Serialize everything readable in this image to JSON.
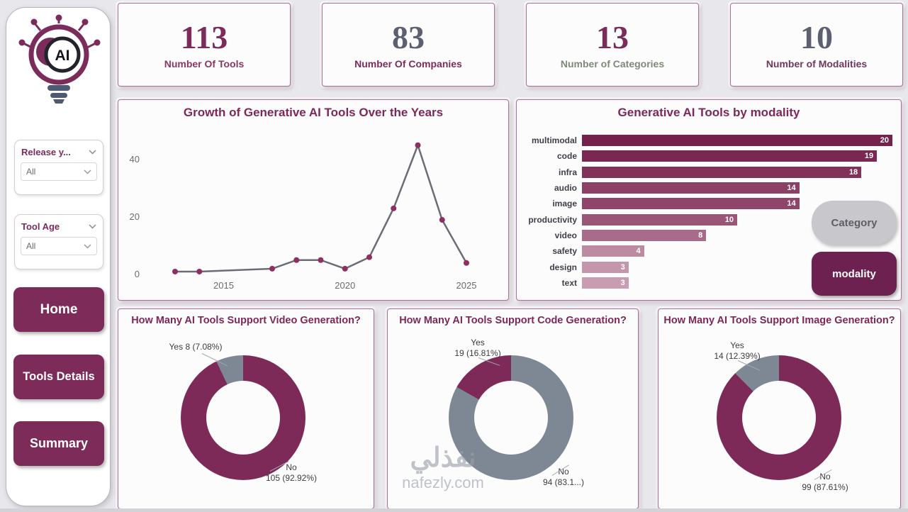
{
  "sidebar": {
    "logo_text": "AI",
    "filters": [
      {
        "label": "Release y...",
        "value": "All"
      },
      {
        "label": "Tool Age",
        "value": "All"
      }
    ],
    "nav": [
      {
        "label": "Home"
      },
      {
        "label": "Tools Details"
      },
      {
        "label": "Summary"
      }
    ]
  },
  "kpis": [
    {
      "value": "113",
      "label": "Number Of Tools",
      "value_color": "#7b2c5b",
      "label_color": "#8b3763"
    },
    {
      "value": "83",
      "label": "Number Of Companies",
      "value_color": "#5c6070",
      "label_color": "#7b2c5b"
    },
    {
      "value": "13",
      "label": "Number of Categories",
      "value_color": "#7b2c5b",
      "label_color": "#7e8a77"
    },
    {
      "value": "10",
      "label": "Number of Modalities",
      "value_color": "#5c6070",
      "label_color": "#6d3a5e"
    }
  ],
  "buttons": {
    "category_label": "Category",
    "modality_label": "modality"
  },
  "chart_data": [
    {
      "type": "line",
      "title": "Growth of Generative AI Tools Over the Years",
      "x": [
        2013,
        2014,
        2017,
        2018,
        2019,
        2020,
        2021,
        2022,
        2023,
        2024,
        2025
      ],
      "values": [
        1,
        1,
        2,
        5,
        5,
        2,
        6,
        23,
        45,
        19,
        4
      ],
      "x_ticks": [
        "2015",
        "2020",
        "2025"
      ],
      "x_tick_years": [
        2015,
        2020,
        2025
      ],
      "y_ticks": [
        0,
        20,
        40
      ],
      "ylim": [
        0,
        48
      ],
      "xlim": [
        2013,
        2025
      ],
      "grid": false,
      "legend": "none",
      "line_color": "#6b6c74",
      "point_color": "#8e2e62"
    },
    {
      "type": "bar",
      "title": "Generative AI Tools by modality",
      "orientation": "horizontal",
      "categories": [
        "multimodal",
        "code",
        "infra",
        "audio",
        "image",
        "productivity",
        "video",
        "safety",
        "design",
        "text"
      ],
      "values": [
        20,
        19,
        18,
        14,
        14,
        10,
        8,
        4,
        3,
        3
      ],
      "colors": [
        "#74214c",
        "#7a2852",
        "#823158",
        "#8d4066",
        "#90446a",
        "#9b5577",
        "#a96b8a",
        "#bc8ba2",
        "#c495ab",
        "#c99db1"
      ],
      "xlim": [
        0,
        20
      ],
      "xlabel": "",
      "ylabel": ""
    },
    {
      "type": "donut",
      "title": "How Many AI Tools Support Video Generation?",
      "segments": [
        {
          "label": "No",
          "value": 105,
          "pct": 92.92,
          "color": "#7d2a58"
        },
        {
          "label": "Yes",
          "value": 8,
          "pct": 7.08,
          "color": "#7e8794"
        }
      ],
      "yes_label_lines": [
        "Yes 8 (7.08%)"
      ],
      "no_label_lines": [
        "No",
        "105 (92.92%)"
      ]
    },
    {
      "type": "donut",
      "title": "How Many AI Tools Support Code Generation?",
      "segments": [
        {
          "label": "No",
          "value": 94,
          "pct": 83.19,
          "color": "#7e8794"
        },
        {
          "label": "Yes",
          "value": 19,
          "pct": 16.81,
          "color": "#7d2a58"
        }
      ],
      "yes_label_lines": [
        "Yes",
        "19 (16.81%)"
      ],
      "no_label_lines": [
        "No",
        "94 (83.1...)"
      ]
    },
    {
      "type": "donut",
      "title": "How Many AI Tools Support Image Generation?",
      "segments": [
        {
          "label": "No",
          "value": 99,
          "pct": 87.61,
          "color": "#7d2a58"
        },
        {
          "label": "Yes",
          "value": 14,
          "pct": 12.39,
          "color": "#7e8794"
        }
      ],
      "yes_label_lines": [
        "Yes",
        "14 (12.39%)"
      ],
      "no_label_lines": [
        "No",
        "99 (87.61%)"
      ]
    }
  ],
  "watermark": {
    "arabic": "نفذلي",
    "latin": "nafezly.com"
  }
}
